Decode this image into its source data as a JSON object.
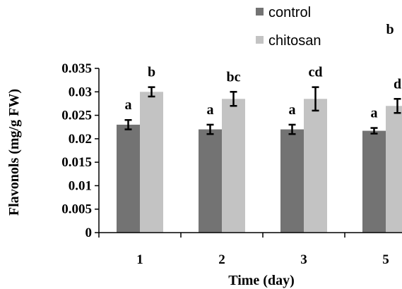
{
  "chart_data": {
    "type": "bar",
    "categories": [
      "1",
      "2",
      "3",
      "5"
    ],
    "series": [
      {
        "name": "control",
        "color": "#737373",
        "values": [
          0.023,
          0.022,
          0.022,
          0.0217
        ],
        "errors": [
          0.001,
          0.001,
          0.001,
          0.0006
        ],
        "letters": [
          "a",
          "a",
          "a",
          "a"
        ]
      },
      {
        "name": "chitosan",
        "color": "#c3c3c3",
        "values": [
          0.03,
          0.0285,
          0.0285,
          0.027
        ],
        "errors": [
          0.001,
          0.0015,
          0.0025,
          0.0015
        ],
        "letters": [
          "b",
          "bc",
          "cd",
          "d"
        ]
      }
    ],
    "xlabel": "Time (day)",
    "ylabel": "Flavonols (mg/g FW)",
    "ylim": [
      0,
      0.035
    ],
    "yticks": [
      "0",
      "0.005",
      "0.01",
      "0.015",
      "0.02",
      "0.025",
      "0.03",
      "0.035"
    ],
    "yticks_values": [
      0,
      0.005,
      0.01,
      0.015,
      0.02,
      0.025,
      0.03,
      0.035
    ],
    "grid": false,
    "legend_position": "top-right",
    "extra_annotation": "b"
  }
}
